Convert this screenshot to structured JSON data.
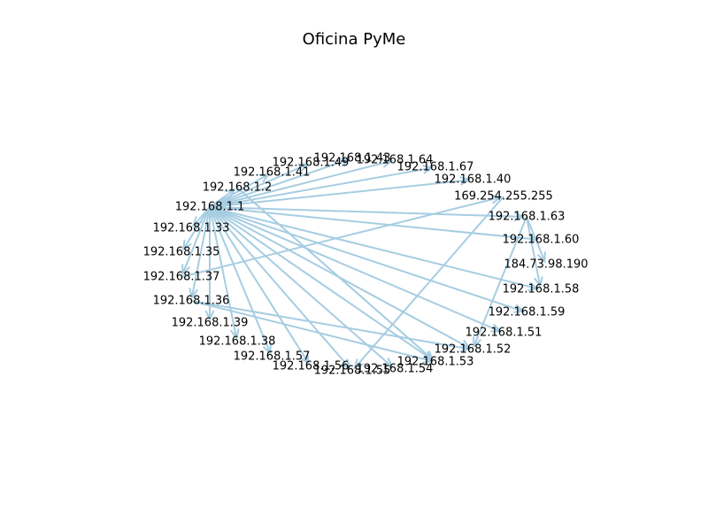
{
  "title": "Oficina PyMe",
  "edge_color": "#a6cde2",
  "source": "192.168.1.1",
  "nodes": [
    "192.168.1.1",
    "192.168.1.2",
    "192.168.1.41",
    "192.168.1.49",
    "192.168.1.43",
    "192.168.1.64",
    "192.168.1.67",
    "192.168.1.40",
    "169.254.255.255",
    "192.168.1.63",
    "192.168.1.60",
    "184.73.98.190",
    "192.168.1.58",
    "192.168.1.59",
    "192.168.1.51",
    "192.168.1.52",
    "192.168.1.53",
    "192.168.1.54",
    "192.168.1.55",
    "192.168.1.56",
    "192.168.1.57",
    "192.168.1.38",
    "192.168.1.39",
    "192.168.1.36",
    "192.168.1.37",
    "192.168.1.35",
    "192.168.1.33"
  ],
  "edges": [
    [
      "192.168.1.1",
      "192.168.1.2"
    ],
    [
      "192.168.1.1",
      "192.168.1.41"
    ],
    [
      "192.168.1.1",
      "192.168.1.49"
    ],
    [
      "192.168.1.1",
      "192.168.1.43"
    ],
    [
      "192.168.1.1",
      "192.168.1.64"
    ],
    [
      "192.168.1.1",
      "192.168.1.67"
    ],
    [
      "192.168.1.1",
      "192.168.1.40"
    ],
    [
      "192.168.1.1",
      "192.168.1.63"
    ],
    [
      "192.168.1.1",
      "192.168.1.60"
    ],
    [
      "192.168.1.1",
      "192.168.1.58"
    ],
    [
      "192.168.1.1",
      "192.168.1.59"
    ],
    [
      "192.168.1.1",
      "192.168.1.51"
    ],
    [
      "192.168.1.1",
      "192.168.1.52"
    ],
    [
      "192.168.1.1",
      "192.168.1.53"
    ],
    [
      "192.168.1.1",
      "192.168.1.54"
    ],
    [
      "192.168.1.1",
      "192.168.1.55"
    ],
    [
      "192.168.1.1",
      "192.168.1.56"
    ],
    [
      "192.168.1.1",
      "192.168.1.57"
    ],
    [
      "192.168.1.1",
      "192.168.1.38"
    ],
    [
      "192.168.1.1",
      "192.168.1.39"
    ],
    [
      "192.168.1.1",
      "192.168.1.36"
    ],
    [
      "192.168.1.1",
      "192.168.1.37"
    ],
    [
      "192.168.1.1",
      "192.168.1.35"
    ],
    [
      "192.168.1.1",
      "192.168.1.33"
    ],
    [
      "192.168.1.37",
      "169.254.255.255"
    ],
    [
      "192.168.1.63",
      "184.73.98.190"
    ],
    [
      "192.168.1.63",
      "192.168.1.58"
    ],
    [
      "192.168.1.63",
      "192.168.1.52"
    ],
    [
      "169.254.255.255",
      "192.168.1.55"
    ],
    [
      "192.168.1.36",
      "192.168.1.52"
    ],
    [
      "192.168.1.36",
      "192.168.1.53"
    ],
    [
      "192.168.1.2",
      "192.168.1.53"
    ]
  ]
}
